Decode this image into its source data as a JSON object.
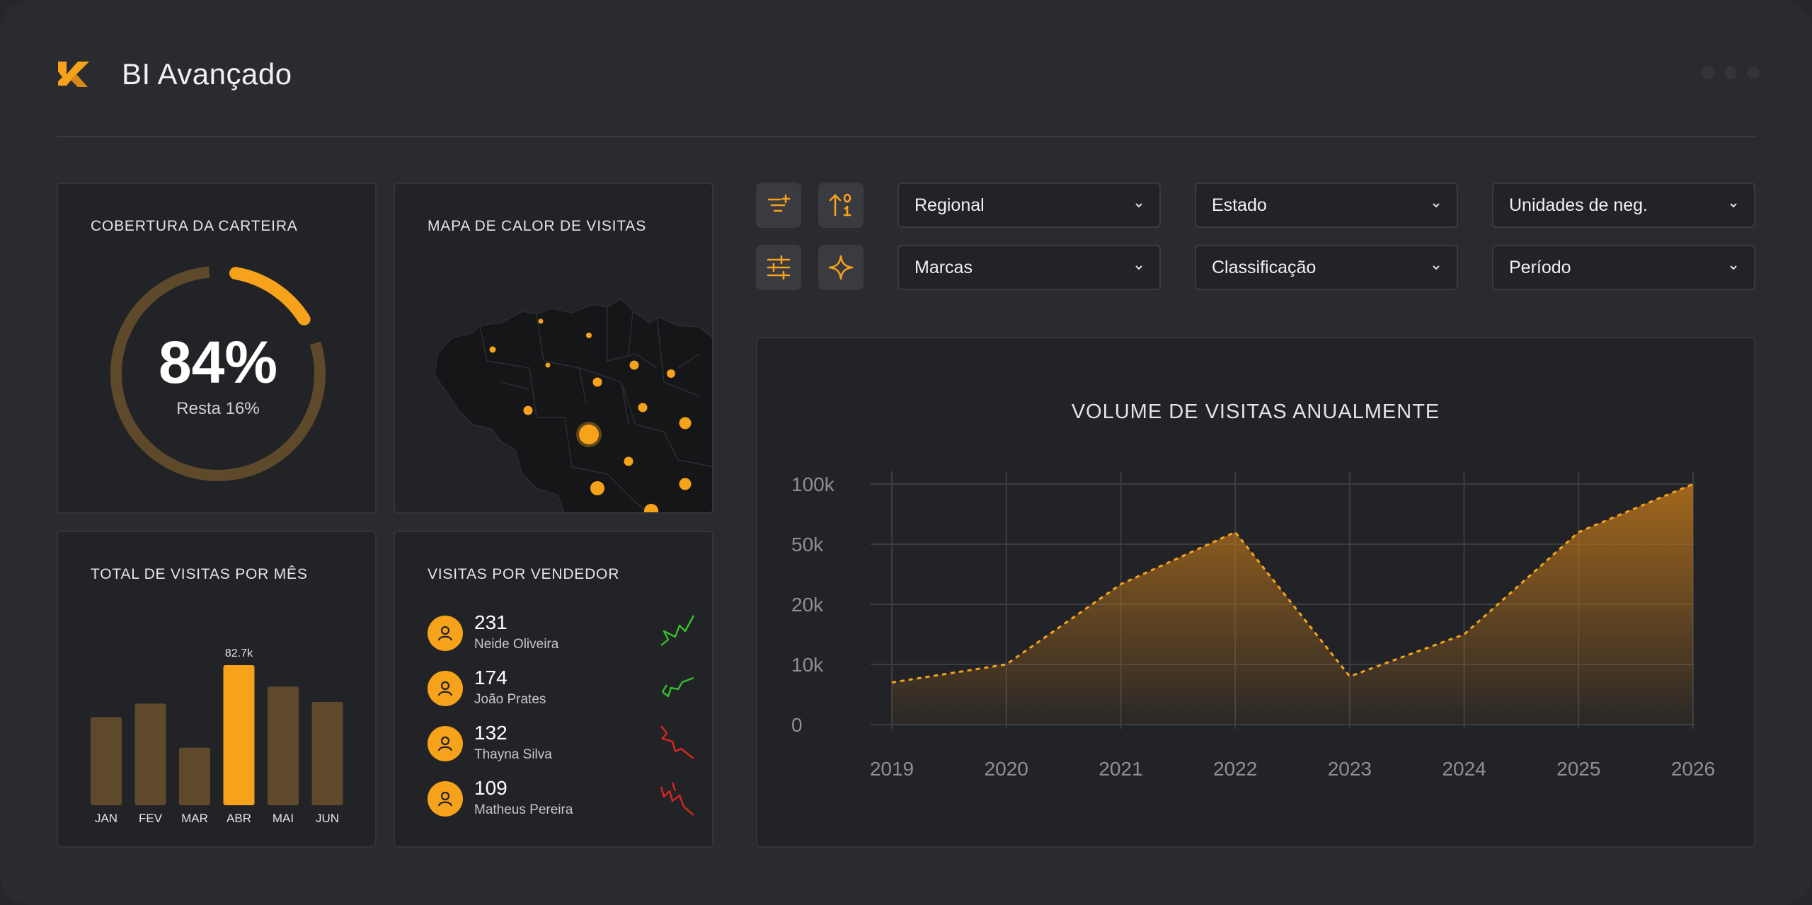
{
  "app": {
    "title": "BI Avançado",
    "logo": "k-logo-icon"
  },
  "colors": {
    "accent": "#f7a21b",
    "muted_bar": "#5e4a2b",
    "trend_up": "#35c22a",
    "trend_down": "#d9261f",
    "card_bg": "#222327"
  },
  "coverage": {
    "title": "COBERTURA DA CARTEIRA",
    "value_label": "84%",
    "percent": 84,
    "remaining_label": "Resta 16%"
  },
  "heatmap": {
    "title": "MAPA DE CALOR DE VISITAS"
  },
  "monthly": {
    "title": "TOTAL DE VISITAS POR MÊS",
    "highlight_label": "82.7k"
  },
  "sellers": {
    "title": "VISITAS POR VENDEDOR",
    "items": [
      {
        "count": "231",
        "name": "Neide Oliveira",
        "trend": "up"
      },
      {
        "count": "174",
        "name": "João Prates",
        "trend": "up"
      },
      {
        "count": "132",
        "name": "Thayna Silva",
        "trend": "down"
      },
      {
        "count": "109",
        "name": "Matheus Pereira",
        "trend": "down"
      }
    ]
  },
  "toolbar": {
    "icons": [
      "filter-add-icon",
      "sort-numeric-icon",
      "adjustments-icon",
      "sparkle-icon"
    ]
  },
  "filters": {
    "regional": "Regional",
    "estado": "Estado",
    "unidades": "Unidades de neg.",
    "marcas": "Marcas",
    "classificacao": "Classificação",
    "periodo": "Período"
  },
  "chart_data": [
    {
      "type": "bar",
      "title": "TOTAL DE VISITAS POR MÊS",
      "categories": [
        "JAN",
        "FEV",
        "MAR",
        "ABR",
        "MAI",
        "JUN"
      ],
      "values": [
        52,
        60,
        34,
        82.7,
        70,
        61
      ],
      "highlight_index": 3,
      "data_labels": {
        "3": "82.7k"
      }
    },
    {
      "type": "area",
      "title": "VOLUME DE VISITAS ANUALMENTE",
      "x": [
        "2019",
        "2020",
        "2021",
        "2022",
        "2023",
        "2024",
        "2025",
        "2026"
      ],
      "y_ticks": [
        "0",
        "10k",
        "20k",
        "50k",
        "100k"
      ],
      "series": [
        {
          "values": [
            7000,
            10000,
            30000,
            60000,
            8000,
            15000,
            60000,
            100000
          ]
        }
      ],
      "grid": true
    }
  ]
}
